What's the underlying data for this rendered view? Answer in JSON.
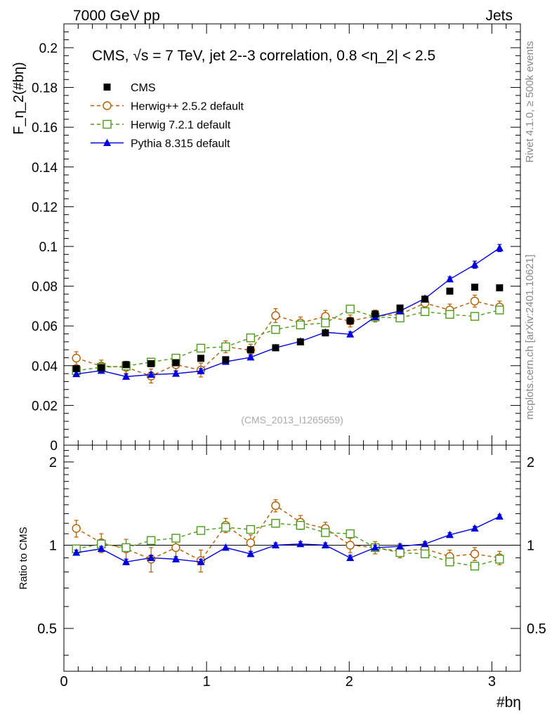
{
  "header": {
    "left": "7000 GeV pp",
    "right": "Jets"
  },
  "side_text": {
    "rivet": "Rivet 4.1.0, ≥ 500k events",
    "mcplots": "mcplots.cern.ch [arXiv:2401.10621]"
  },
  "chart_data": {
    "type": "scatter",
    "title": "CMS, √s = 7 TeV, jet 2--3 correlation, 0.8 <η_2| < 2.5",
    "xlabel": "#bη",
    "ylabel": "F_η_2(#bη)",
    "watermark": "(CMS_2013_I1265659)",
    "xlim": [
      0,
      3.2
    ],
    "ylim": [
      0,
      0.212
    ],
    "x_ticks": [
      "0",
      "1",
      "2",
      "3"
    ],
    "y_ticks": [
      "0",
      "0.02",
      "0.04",
      "0.06",
      "0.08",
      "0.1",
      "0.12",
      "0.14",
      "0.16",
      "0.18",
      "0.2"
    ],
    "ratio_ylabel": "Ratio to CMS",
    "ratio_ylim": [
      0.35,
      2.3
    ],
    "ratio_ticks": [
      "0.5",
      "1",
      "2"
    ],
    "x": [
      0.087,
      0.262,
      0.436,
      0.611,
      0.785,
      0.96,
      1.134,
      1.309,
      1.484,
      1.658,
      1.833,
      2.007,
      2.182,
      2.356,
      2.531,
      2.705,
      2.88,
      3.054
    ],
    "legend": [
      "CMS",
      "Herwig++ 2.5.2 default",
      "Herwig 7.2.1 default",
      "Pythia 8.315 default"
    ],
    "series": [
      {
        "name": "CMS",
        "color": "#000000",
        "values": [
          0.0385,
          0.039,
          0.0405,
          0.041,
          0.0415,
          0.0437,
          0.043,
          0.048,
          0.049,
          0.052,
          0.0565,
          0.0625,
          0.066,
          0.069,
          0.0735,
          0.0775,
          0.0795,
          0.0792
        ]
      },
      {
        "name": "Herwig++ 2.5.2 default",
        "color": "#b35c00",
        "values": [
          0.0438,
          0.0398,
          0.0392,
          0.0348,
          0.0405,
          0.0378,
          0.0495,
          0.0478,
          0.0652,
          0.0615,
          0.0648,
          0.0625,
          0.065,
          0.0658,
          0.0715,
          0.068,
          0.0725,
          0.0695
        ],
        "errors": [
          0.0032,
          0.003,
          0.003,
          0.0035,
          0.003,
          0.0035,
          0.003,
          0.003,
          0.0035,
          0.003,
          0.003,
          0.003,
          0.003,
          0.003,
          0.003,
          0.003,
          0.003,
          0.003
        ]
      },
      {
        "name": "Herwig 7.2.1 default",
        "color": "#4d9a1a",
        "values": [
          0.0375,
          0.0392,
          0.0398,
          0.0418,
          0.0438,
          0.0488,
          0.0495,
          0.054,
          0.0582,
          0.0605,
          0.0615,
          0.0685,
          0.0645,
          0.064,
          0.0672,
          0.0658,
          0.0648,
          0.068
        ],
        "errors": [
          0.0012,
          0.0012,
          0.0012,
          0.0012,
          0.0012,
          0.0012,
          0.0012,
          0.0012,
          0.0012,
          0.0012,
          0.0012,
          0.0012,
          0.0012,
          0.0012,
          0.0012,
          0.0012,
          0.0012,
          0.0012
        ]
      },
      {
        "name": "Pythia 8.315 default",
        "color": "#0000dd",
        "values": [
          0.0358,
          0.0375,
          0.0345,
          0.0355,
          0.036,
          0.0373,
          0.042,
          0.0442,
          0.049,
          0.0522,
          0.0568,
          0.0558,
          0.0645,
          0.0675,
          0.0738,
          0.0835,
          0.0908,
          0.0992
        ],
        "errors": [
          0.0012,
          0.0012,
          0.0012,
          0.0012,
          0.0012,
          0.0012,
          0.0012,
          0.0012,
          0.0012,
          0.0012,
          0.0012,
          0.0012,
          0.0012,
          0.0012,
          0.0012,
          0.0012,
          0.0018,
          0.0018
        ]
      }
    ],
    "ratios": [
      {
        "name": "Herwig++ 2.5.2 default",
        "values": [
          1.15,
          1.02,
          0.97,
          0.89,
          0.98,
          0.88,
          1.18,
          1.02,
          1.39,
          1.21,
          1.15,
          1.0,
          0.98,
          0.95,
          0.97,
          0.91,
          0.93,
          0.9
        ],
        "errors": [
          0.08,
          0.08,
          0.08,
          0.09,
          0.08,
          0.08,
          0.07,
          0.07,
          0.07,
          0.07,
          0.06,
          0.06,
          0.05,
          0.05,
          0.05,
          0.05,
          0.05,
          0.05
        ]
      },
      {
        "name": "Herwig 7.2.1 default",
        "values": [
          0.97,
          1.01,
          0.98,
          1.04,
          1.06,
          1.13,
          1.16,
          1.14,
          1.2,
          1.18,
          1.11,
          1.1,
          0.98,
          0.94,
          0.93,
          0.87,
          0.84,
          0.89
        ],
        "errors": [
          0.03,
          0.03,
          0.03,
          0.03,
          0.03,
          0.03,
          0.03,
          0.03,
          0.03,
          0.03,
          0.03,
          0.03,
          0.02,
          0.02,
          0.02,
          0.02,
          0.02,
          0.02
        ]
      },
      {
        "name": "Pythia 8.315 default",
        "values": [
          0.94,
          0.97,
          0.87,
          0.9,
          0.89,
          0.87,
          0.98,
          0.93,
          1.0,
          1.01,
          1.0,
          0.9,
          0.98,
          0.99,
          1.01,
          1.09,
          1.15,
          1.27
        ],
        "errors": [
          0.02,
          0.02,
          0.02,
          0.02,
          0.02,
          0.02,
          0.02,
          0.02,
          0.02,
          0.02,
          0.02,
          0.02,
          0.02,
          0.02,
          0.02,
          0.02,
          0.02,
          0.02
        ]
      }
    ]
  }
}
